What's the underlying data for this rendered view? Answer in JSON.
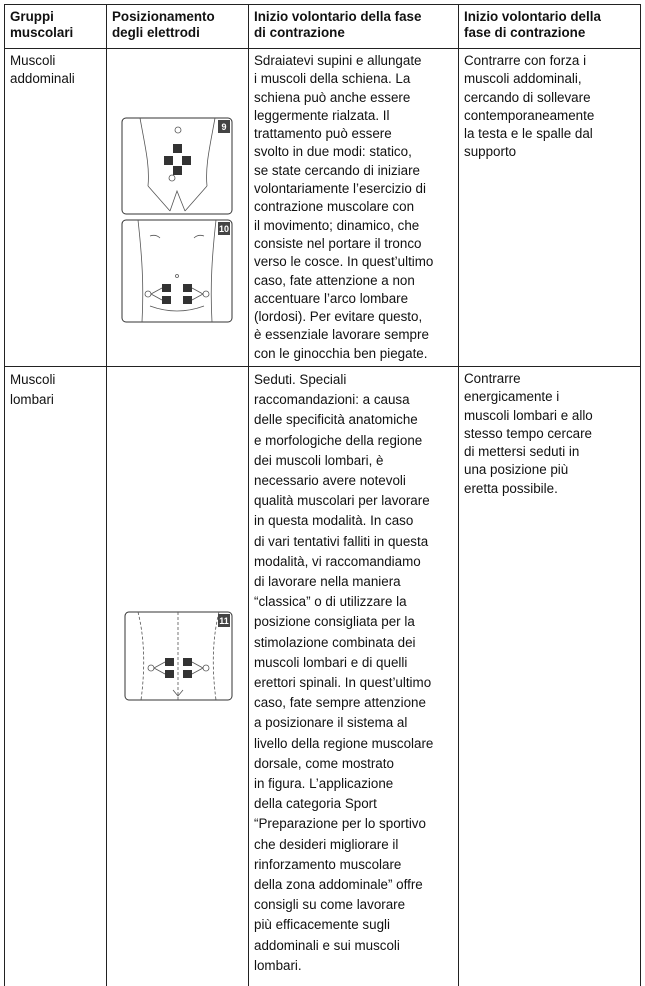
{
  "table": {
    "header": [
      [
        "Gruppi",
        "muscolari"
      ],
      [
        "Posizionamento",
        "degli elettrodi"
      ],
      [
        "Inizio volontario della fase",
        "di contrazione"
      ],
      [
        "Inizio volontario della",
        "fase di contrazione"
      ]
    ],
    "rows": [
      {
        "group": [
          "Muscoli",
          "addominali"
        ],
        "figures": [
          "9",
          "10"
        ],
        "description": [
          "Sdraiatevi supini e allungate",
          "i muscoli della schiena. La",
          "schiena può anche essere",
          "leggermente rialzata. Il",
          "trattamento può essere",
          "svolto in due modi: statico,",
          "se state cercando di iniziare",
          "volontariamente l’esercizio di",
          "contrazione muscolare con",
          "il movimento; dinamico, che",
          "consiste nel portare il tronco",
          "verso le cosce. In quest’ultimo",
          "caso, fate attenzione a non",
          "accentuare l’arco lombare",
          "(lordosi). Per evitare questo,",
          "è essenziale lavorare sempre",
          "con le ginocchia ben piegate."
        ],
        "contraction": [
          "Contrarre con forza i",
          "muscoli addominali,",
          "cercando di sollevare",
          "contemporaneamente",
          "la testa e le spalle dal",
          "supporto"
        ]
      },
      {
        "group": [
          "Muscoli",
          "lombari"
        ],
        "figures": [
          "11"
        ],
        "description": [
          "Seduti. Speciali",
          "raccomandazioni: a causa",
          "delle specificità anatomiche",
          "e morfologiche della regione",
          "dei muscoli lombari, è",
          "necessario avere notevoli",
          "qualità muscolari per lavorare",
          "in questa modalità. In caso",
          "di vari tentativi falliti in questa",
          "modalità, vi raccomandiamo",
          "di lavorare nella maniera",
          "“classica” o di utilizzare la",
          "posizione consigliata per la",
          "stimolazione combinata dei",
          "muscoli lombari e di quelli",
          "erettori spinali. In quest’ultimo",
          "caso, fate sempre attenzione",
          "a posizionare il sistema al",
          "livello della regione muscolare",
          "dorsale, come mostrato",
          "in figura. L’applicazione",
          "della categoria Sport",
          "“Preparazione per lo sportivo",
          "che desideri migliorare il",
          "rinforzamento muscolare",
          "della zona addominale” offre",
          "consigli su come lavorare",
          "più efficacemente sugli",
          "addominali e sui muscoli",
          "lombari."
        ],
        "contraction": [
          "Contrarre",
          "energicamente i",
          "muscoli lombari e allo",
          "stesso tempo cercare",
          "di mettersi seduti in",
          "una posizione più",
          "eretta possibile."
        ]
      }
    ]
  }
}
